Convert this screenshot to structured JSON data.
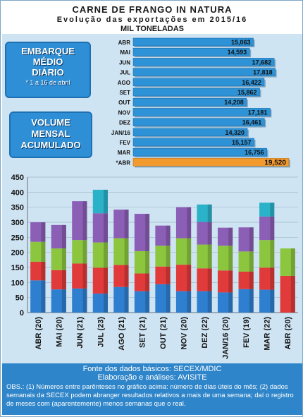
{
  "header": {
    "title": "CARNE DE FRANGO IN NATURA",
    "subtitle": "Evolução das exportações em 2015/16",
    "units": "MIL TONELADAS"
  },
  "callouts": {
    "embarque_lines": [
      "EMBARQUE",
      "MÉDIO",
      "DIÁRIO"
    ],
    "embarque_note": "* 1 a 16 de abril",
    "volume_lines": [
      "VOLUME",
      "MENSAL",
      "ACUMULADO"
    ]
  },
  "footer": {
    "source": "Fonte dos dados básicos: SECEX/MDIC",
    "elaboration": "Elaboração e análises: AVISITE",
    "obs": "OBS.: (1) Números entre parênteses no gráfico acima: número de dias úteis do mês; (2) dados semanais da SECEX podem abranger resultados relativos a mais de uma semana; daí o registro de meses com (aparentemente) menos semanas que o real."
  },
  "colors": {
    "daily_bar": "#2e92d6",
    "daily_highlight": "#f39a2f",
    "week1": "#2f7fd0",
    "week2": "#e03a3a",
    "week3": "#8cc63f",
    "week4": "#8b5fb5",
    "week5": "#2ab3c8",
    "panel_bg": "#cfe4f3"
  },
  "chart_data": [
    {
      "type": "bar",
      "orientation": "horizontal",
      "categories": [
        "ABR",
        "MAI",
        "JUN",
        "JUL",
        "AGO",
        "SET",
        "OUT",
        "NOV",
        "DEZ",
        "JAN/16",
        "FEV",
        "MAR",
        "*ABR"
      ],
      "values": [
        15063,
        14593,
        17682,
        17818,
        16422,
        15862,
        14208,
        17181,
        16461,
        14320,
        15157,
        16756,
        19520
      ],
      "labels": [
        "15,063",
        "14,593",
        "17,682",
        "17,818",
        "16,422",
        "15,862",
        "14,208",
        "17,181",
        "16,461",
        "14,320",
        "15,157",
        "16,756",
        "19,520"
      ],
      "highlight_index": 12,
      "xlim": [
        0,
        20500
      ]
    },
    {
      "type": "bar",
      "stacked": true,
      "categories": [
        "ABR (20)",
        "MAI (20)",
        "JUN (21)",
        "JUL (23)",
        "AGO (21)",
        "SET (21)",
        "OUT (21)",
        "NOV (20)",
        "DEZ (22)",
        "JAN/16 (20)",
        "FEV (19)",
        "MAR (22)",
        "ABR (20)"
      ],
      "series": [
        {
          "color_key": "week1",
          "values": [
            107,
            77,
            80,
            63,
            85,
            71,
            94,
            71,
            71,
            67,
            78,
            76,
            0
          ]
        },
        {
          "color_key": "week2",
          "values": [
            62,
            64,
            83,
            86,
            73,
            59,
            59,
            88,
            76,
            73,
            58,
            73,
            122
          ]
        },
        {
          "color_key": "week3",
          "values": [
            66,
            72,
            78,
            84,
            89,
            74,
            69,
            88,
            79,
            82,
            67,
            92,
            91
          ]
        },
        {
          "color_key": "week4",
          "values": [
            65,
            78,
            129,
            97,
            95,
            124,
            67,
            103,
            75,
            60,
            80,
            78,
            0
          ]
        },
        {
          "color_key": "week5",
          "values": [
            0,
            0,
            0,
            78,
            0,
            0,
            0,
            0,
            58,
            0,
            0,
            46,
            0
          ]
        }
      ],
      "ylim": [
        0,
        450
      ],
      "yticks": [
        0,
        50,
        100,
        150,
        200,
        250,
        300,
        350,
        400,
        450
      ],
      "grid": true
    }
  ]
}
